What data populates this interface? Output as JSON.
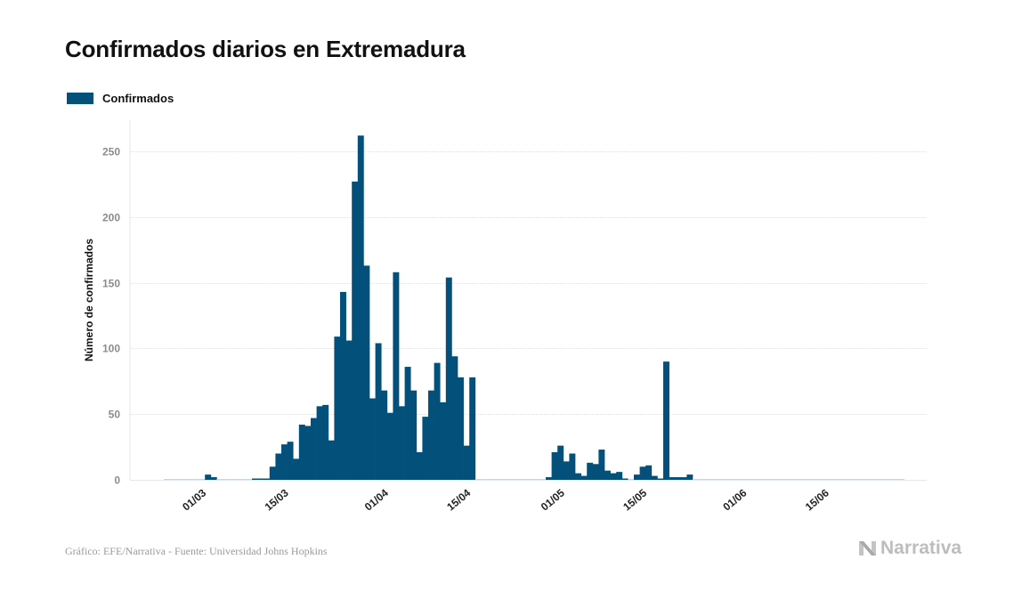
{
  "chart_data": {
    "type": "bar",
    "title": "Confirmados diarios en Extremadura",
    "ylabel": "Número de confirmados",
    "xlabel": "",
    "ylim": [
      0,
      275
    ],
    "yticks": [
      0,
      50,
      100,
      150,
      200,
      250
    ],
    "grid": true,
    "legend_position": "top-left",
    "color": "#03507a",
    "grid_color": "#e7e7e7",
    "x_start": "2020-02-25",
    "xticks": [
      {
        "date": "2020-03-01",
        "label": "01/03"
      },
      {
        "date": "2020-03-15",
        "label": "15/03"
      },
      {
        "date": "2020-04-01",
        "label": "01/04"
      },
      {
        "date": "2020-04-15",
        "label": "15/04"
      },
      {
        "date": "2020-05-01",
        "label": "01/05"
      },
      {
        "date": "2020-05-15",
        "label": "15/05"
      },
      {
        "date": "2020-06-01",
        "label": "01/06"
      },
      {
        "date": "2020-06-15",
        "label": "15/06"
      }
    ],
    "series": [
      {
        "name": "Confirmados",
        "values": [
          0,
          0,
          0,
          0,
          0,
          0,
          0,
          4,
          2,
          0,
          0,
          0,
          0,
          0,
          0,
          1,
          1,
          1,
          10,
          20,
          27,
          29,
          16,
          42,
          41,
          47,
          56,
          57,
          30,
          109,
          143,
          106,
          227,
          262,
          163,
          62,
          104,
          68,
          51,
          158,
          56,
          86,
          68,
          21,
          48,
          68,
          89,
          59,
          154,
          94,
          78,
          26,
          78,
          0,
          0,
          0,
          0,
          0,
          0,
          0,
          0,
          0,
          0,
          0,
          0,
          2,
          21,
          26,
          14,
          20,
          5,
          3,
          13,
          12,
          23,
          7,
          5,
          6,
          1,
          0,
          4,
          10,
          11,
          3,
          1,
          90,
          2,
          2,
          2,
          4,
          0,
          0,
          0,
          0,
          0,
          0,
          0,
          0,
          0,
          0,
          0,
          0,
          0,
          0,
          0,
          0,
          0,
          0,
          0,
          0,
          0,
          0,
          0,
          0,
          0,
          0,
          0,
          0,
          0,
          0,
          0,
          0,
          0,
          0,
          0,
          0
        ]
      }
    ]
  },
  "footer": {
    "credit": "Gráfico: EFE/Narrativa - Fuente: Universidad Johns Hopkins",
    "brand": "Narrativa"
  },
  "brand_color": "#bdbdbd"
}
